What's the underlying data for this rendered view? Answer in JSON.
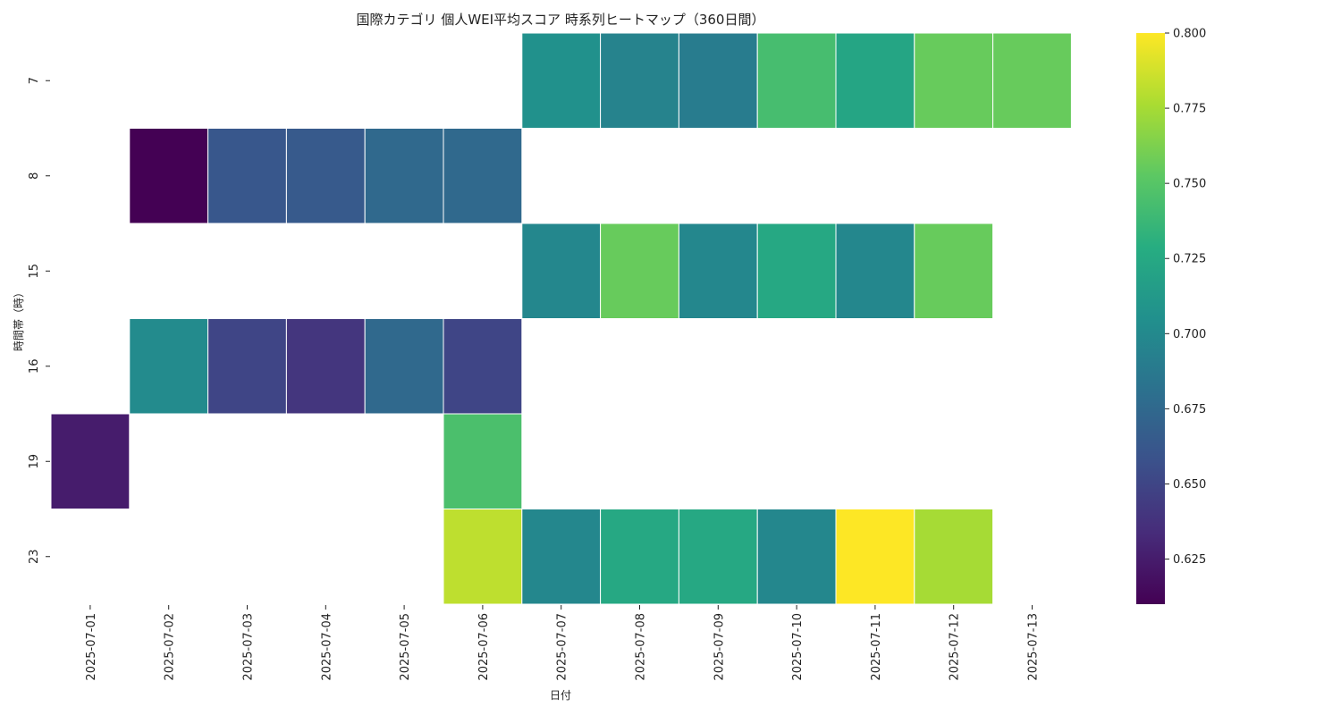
{
  "chart_data": {
    "type": "heatmap",
    "title": "国際カテゴリ 個人WEI平均スコア 時系列ヒートマップ（360日間）",
    "xlabel": "日付",
    "ylabel": "時間帯（時）",
    "x_categories": [
      "2025-07-01",
      "2025-07-02",
      "2025-07-03",
      "2025-07-04",
      "2025-07-05",
      "2025-07-06",
      "2025-07-07",
      "2025-07-08",
      "2025-07-09",
      "2025-07-10",
      "2025-07-11",
      "2025-07-12",
      "2025-07-13"
    ],
    "y_categories": [
      "7",
      "8",
      "15",
      "16",
      "19",
      "23"
    ],
    "values": [
      [
        null,
        null,
        null,
        null,
        null,
        null,
        0.706,
        0.695,
        0.69,
        0.743,
        0.722,
        0.756,
        0.756
      ],
      [
        null,
        0.61,
        0.662,
        0.664,
        0.675,
        0.675,
        null,
        null,
        null,
        null,
        null,
        null,
        null
      ],
      [
        null,
        null,
        null,
        null,
        null,
        null,
        0.698,
        0.756,
        0.698,
        0.725,
        0.698,
        0.756,
        null
      ],
      [
        null,
        0.701,
        0.65,
        0.64,
        0.675,
        0.65,
        null,
        null,
        null,
        null,
        null,
        null,
        null
      ],
      [
        0.625,
        null,
        null,
        null,
        null,
        0.745,
        null,
        null,
        null,
        null,
        null,
        null,
        null
      ],
      [
        null,
        null,
        null,
        null,
        null,
        0.782,
        0.698,
        0.725,
        0.725,
        0.698,
        0.8,
        0.775,
        null
      ]
    ],
    "colormap": "viridis",
    "vmin": 0.61,
    "vmax": 0.8,
    "colorbar_ticks": [
      "0.625",
      "0.650",
      "0.675",
      "0.700",
      "0.725",
      "0.750",
      "0.775",
      "0.800"
    ],
    "colors": {
      "low": "#440154",
      "high": "#fde725",
      "cell_border": "#ffffff"
    }
  }
}
